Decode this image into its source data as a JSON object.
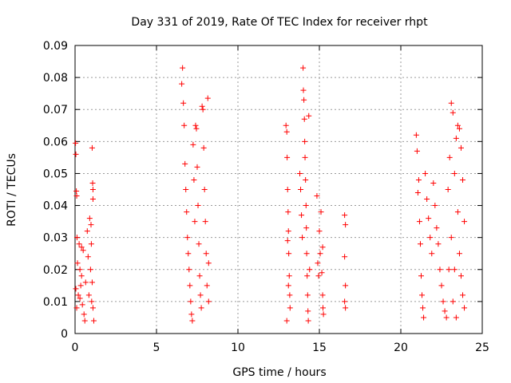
{
  "chart_data": {
    "type": "scatter",
    "title": "Day 331 of 2019, Rate Of TEC Index for receiver rhpt",
    "xlabel": "GPS time / hours",
    "ylabel": "ROTI / TECUs",
    "xlim": [
      0,
      25
    ],
    "ylim": [
      0,
      0.09
    ],
    "xticks": [
      "0",
      "5",
      "10",
      "15",
      "20",
      "25"
    ],
    "yticks": [
      "0",
      "0.01",
      "0.02",
      "0.03",
      "0.04",
      "0.05",
      "0.06",
      "0.07",
      "0.08",
      "0.09"
    ],
    "grid": true,
    "marker": "+",
    "color": "#ff0000",
    "series": [
      {
        "name": "ROTI",
        "points": [
          [
            0.03,
            0.0595
          ],
          [
            0.05,
            0.056
          ],
          [
            0.08,
            0.0445
          ],
          [
            0.1,
            0.043
          ],
          [
            0.12,
            0.03
          ],
          [
            0.2,
            0.012
          ],
          [
            0.25,
            0.028
          ],
          [
            0.3,
            0.02
          ],
          [
            0.35,
            0.015
          ],
          [
            0.4,
            0.027
          ],
          [
            0.45,
            0.009
          ],
          [
            0.5,
            0.026
          ],
          [
            0.55,
            0.006
          ],
          [
            0.6,
            0.004
          ],
          [
            0.65,
            0.016
          ],
          [
            0.05,
            0.014
          ],
          [
            0.1,
            0.008
          ],
          [
            0.15,
            0.022
          ],
          [
            0.3,
            0.011
          ],
          [
            0.4,
            0.018
          ],
          [
            0.75,
            0.032
          ],
          [
            0.8,
            0.024
          ],
          [
            0.85,
            0.012
          ],
          [
            0.9,
            0.036
          ],
          [
            0.95,
            0.02
          ],
          [
            1.0,
            0.028
          ],
          [
            1.05,
            0.016
          ],
          [
            1.1,
            0.008
          ],
          [
            1.15,
            0.004
          ],
          [
            1.05,
            0.058
          ],
          [
            1.08,
            0.047
          ],
          [
            1.1,
            0.045
          ],
          [
            1.1,
            0.042
          ],
          [
            0.98,
            0.034
          ],
          [
            1.02,
            0.01
          ],
          [
            6.55,
            0.078
          ],
          [
            6.6,
            0.083
          ],
          [
            6.65,
            0.072
          ],
          [
            6.7,
            0.065
          ],
          [
            6.75,
            0.053
          ],
          [
            6.8,
            0.045
          ],
          [
            6.85,
            0.038
          ],
          [
            6.9,
            0.03
          ],
          [
            6.95,
            0.025
          ],
          [
            7.0,
            0.02
          ],
          [
            7.05,
            0.015
          ],
          [
            7.1,
            0.01
          ],
          [
            7.15,
            0.006
          ],
          [
            7.2,
            0.004
          ],
          [
            7.25,
            0.059
          ],
          [
            7.3,
            0.048
          ],
          [
            7.35,
            0.035
          ],
          [
            7.4,
            0.065
          ],
          [
            7.45,
            0.064
          ],
          [
            7.5,
            0.052
          ],
          [
            7.55,
            0.04
          ],
          [
            7.6,
            0.028
          ],
          [
            7.65,
            0.018
          ],
          [
            7.7,
            0.012
          ],
          [
            7.75,
            0.008
          ],
          [
            7.8,
            0.071
          ],
          [
            7.85,
            0.07
          ],
          [
            7.9,
            0.058
          ],
          [
            7.95,
            0.045
          ],
          [
            8.0,
            0.035
          ],
          [
            8.05,
            0.025
          ],
          [
            8.1,
            0.015
          ],
          [
            8.15,
            0.0735
          ],
          [
            8.2,
            0.022
          ],
          [
            8.2,
            0.01
          ],
          [
            12.95,
            0.065
          ],
          [
            13.0,
            0.063
          ],
          [
            13.02,
            0.055
          ],
          [
            13.05,
            0.045
          ],
          [
            13.08,
            0.038
          ],
          [
            13.1,
            0.032
          ],
          [
            13.12,
            0.025
          ],
          [
            13.15,
            0.018
          ],
          [
            13.18,
            0.012
          ],
          [
            13.2,
            0.008
          ],
          [
            13.0,
            0.004
          ],
          [
            13.05,
            0.029
          ],
          [
            13.1,
            0.015
          ],
          [
            13.8,
            0.05
          ],
          [
            13.85,
            0.045
          ],
          [
            13.9,
            0.037
          ],
          [
            13.95,
            0.03
          ],
          [
            14.0,
            0.083
          ],
          [
            14.02,
            0.076
          ],
          [
            14.05,
            0.073
          ],
          [
            14.08,
            0.067
          ],
          [
            14.1,
            0.06
          ],
          [
            14.12,
            0.055
          ],
          [
            14.15,
            0.048
          ],
          [
            14.18,
            0.04
          ],
          [
            14.2,
            0.033
          ],
          [
            14.22,
            0.025
          ],
          [
            14.25,
            0.018
          ],
          [
            14.28,
            0.012
          ],
          [
            14.3,
            0.007
          ],
          [
            14.32,
            0.004
          ],
          [
            14.35,
            0.068
          ],
          [
            14.4,
            0.02
          ],
          [
            14.85,
            0.043
          ],
          [
            14.9,
            0.022
          ],
          [
            14.95,
            0.018
          ],
          [
            15.0,
            0.032
          ],
          [
            15.05,
            0.025
          ],
          [
            15.1,
            0.038
          ],
          [
            15.15,
            0.019
          ],
          [
            15.2,
            0.012
          ],
          [
            15.22,
            0.008
          ],
          [
            15.25,
            0.006
          ],
          [
            15.2,
            0.027
          ],
          [
            16.55,
            0.037
          ],
          [
            16.6,
            0.034
          ],
          [
            16.55,
            0.024
          ],
          [
            16.6,
            0.015
          ],
          [
            16.55,
            0.01
          ],
          [
            16.6,
            0.008
          ],
          [
            20.95,
            0.062
          ],
          [
            21.0,
            0.057
          ],
          [
            21.05,
            0.044
          ],
          [
            21.1,
            0.048
          ],
          [
            21.15,
            0.035
          ],
          [
            21.2,
            0.028
          ],
          [
            21.25,
            0.018
          ],
          [
            21.3,
            0.012
          ],
          [
            21.35,
            0.008
          ],
          [
            21.4,
            0.005
          ],
          [
            21.5,
            0.05
          ],
          [
            21.6,
            0.042
          ],
          [
            21.7,
            0.036
          ],
          [
            21.8,
            0.03
          ],
          [
            21.9,
            0.025
          ],
          [
            22.0,
            0.047
          ],
          [
            22.1,
            0.04
          ],
          [
            22.2,
            0.033
          ],
          [
            22.3,
            0.028
          ],
          [
            22.4,
            0.02
          ],
          [
            22.5,
            0.015
          ],
          [
            22.6,
            0.01
          ],
          [
            22.7,
            0.007
          ],
          [
            22.8,
            0.005
          ],
          [
            22.9,
            0.045
          ],
          [
            23.0,
            0.055
          ],
          [
            23.1,
            0.072
          ],
          [
            23.2,
            0.069
          ],
          [
            23.3,
            0.05
          ],
          [
            23.4,
            0.061
          ],
          [
            23.5,
            0.065
          ],
          [
            23.6,
            0.064
          ],
          [
            23.7,
            0.058
          ],
          [
            23.8,
            0.048
          ],
          [
            23.9,
            0.035
          ],
          [
            23.5,
            0.038
          ],
          [
            23.6,
            0.025
          ],
          [
            23.7,
            0.018
          ],
          [
            23.8,
            0.012
          ],
          [
            23.9,
            0.008
          ],
          [
            23.4,
            0.005
          ],
          [
            23.3,
            0.02
          ],
          [
            23.2,
            0.01
          ],
          [
            23.1,
            0.03
          ],
          [
            22.95,
            0.02
          ]
        ]
      }
    ]
  }
}
